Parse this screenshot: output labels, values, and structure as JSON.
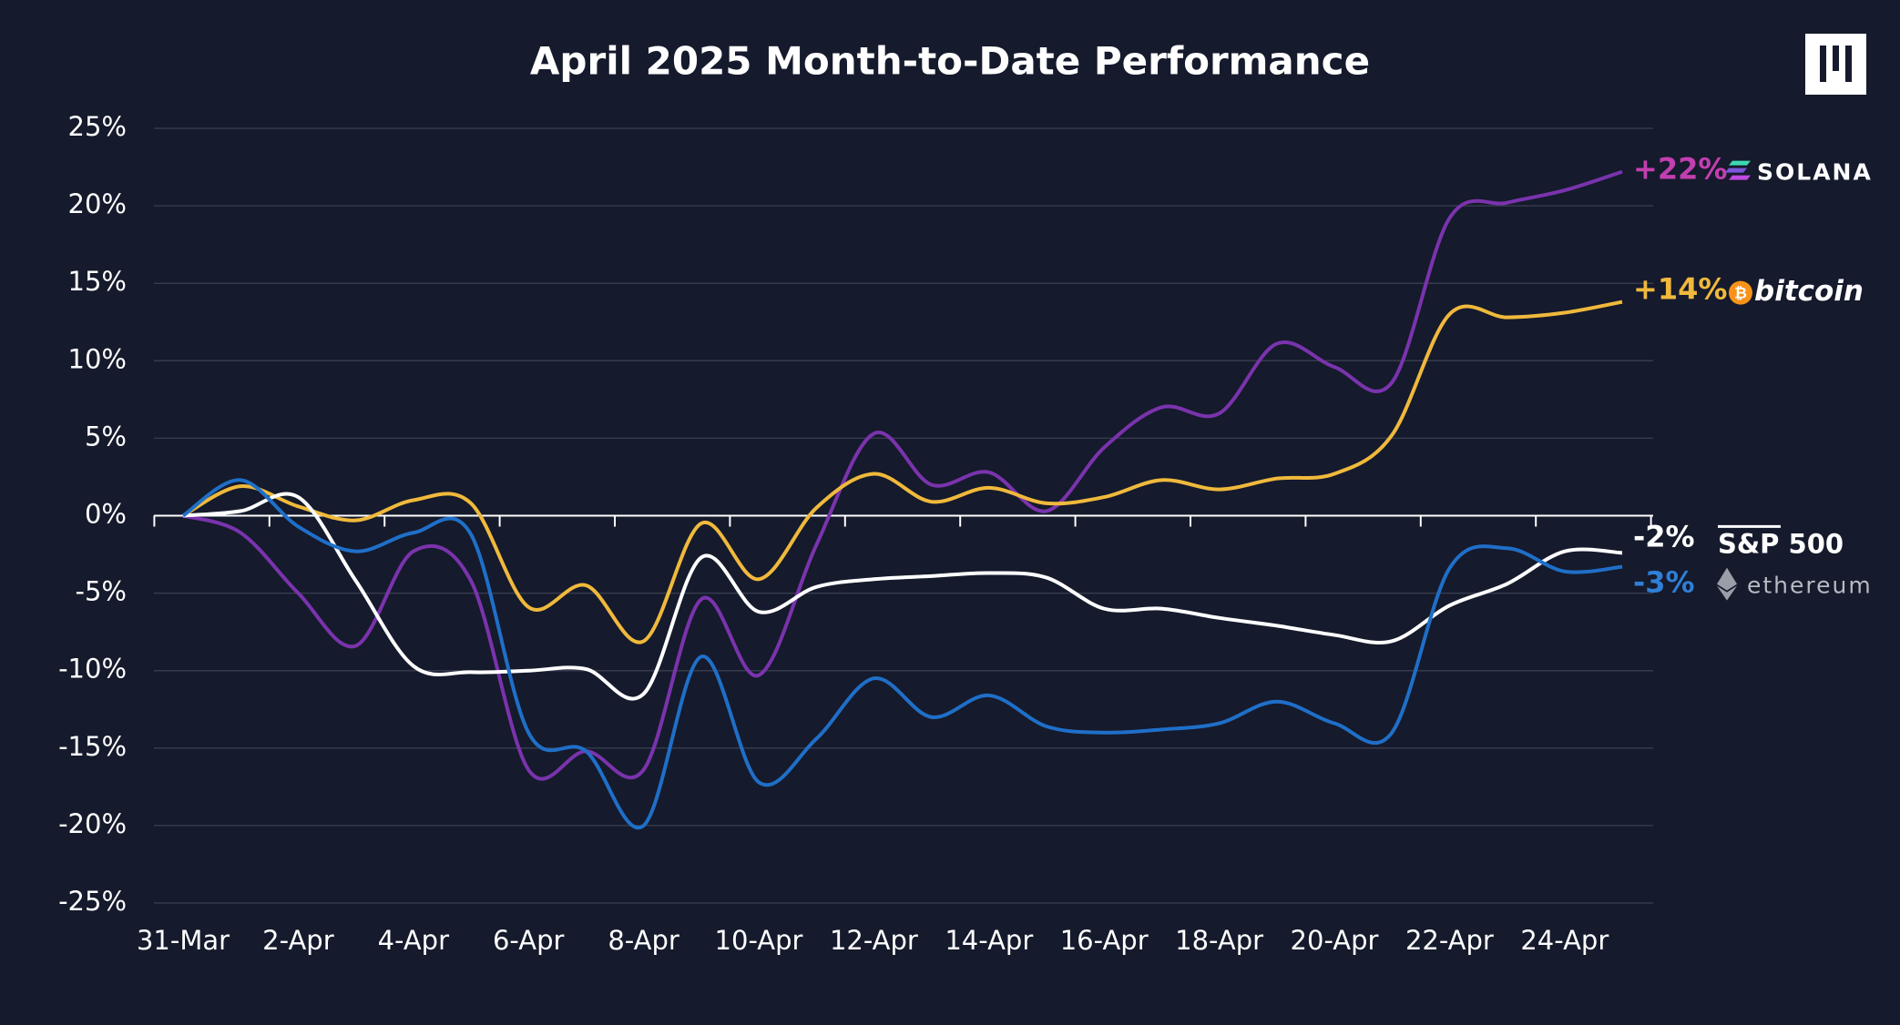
{
  "chart_data": {
    "type": "line",
    "title": "April 2025 Month-to-Date Performance",
    "categories": [
      "31-Mar",
      null,
      "2-Apr",
      null,
      "4-Apr",
      null,
      "6-Apr",
      null,
      "8-Apr",
      null,
      "10-Apr",
      null,
      "12-Apr",
      null,
      "14-Apr",
      null,
      "16-Apr",
      null,
      "18-Apr",
      null,
      "20-Apr",
      null,
      "22-Apr",
      null,
      "24-Apr",
      null
    ],
    "series": [
      {
        "name": "SOLANA",
        "color": "#7a33ad",
        "end_label": "+22%",
        "label_color": "#c23fb0",
        "values": [
          0,
          -1.1,
          -5.0,
          -8.4,
          -2.3,
          -4.2,
          -16.4,
          -15.2,
          -16.4,
          -5.4,
          -10.3,
          -1.9,
          5.3,
          2.0,
          2.8,
          0.3,
          4.4,
          7.0,
          6.6,
          11.1,
          9.6,
          8.6,
          19.2,
          20.2,
          21.0,
          22.2
        ]
      },
      {
        "name": "bitcoin",
        "color": "#f0b93c",
        "end_label": "+14%",
        "label_color": "#f0b93c",
        "values": [
          0,
          1.9,
          0.6,
          -0.3,
          1.0,
          0.8,
          -5.9,
          -4.5,
          -8.1,
          -0.5,
          -4.1,
          0.5,
          2.7,
          0.9,
          1.8,
          0.8,
          1.2,
          2.3,
          1.7,
          2.4,
          2.7,
          5.2,
          13.0,
          12.8,
          13.1,
          13.8
        ]
      },
      {
        "name": "S&P 500",
        "color": "#ffffff",
        "end_label": "-2%",
        "label_color": "#ffffff",
        "values": [
          0,
          0.3,
          1.2,
          -4.2,
          -9.7,
          -10.1,
          -10.0,
          -9.9,
          -11.5,
          -2.7,
          -6.2,
          -4.6,
          -4.1,
          -3.9,
          -3.7,
          -4.0,
          -6.0,
          -6.0,
          -6.6,
          -7.1,
          -7.7,
          -8.1,
          -5.8,
          -4.4,
          -2.3,
          -2.4
        ]
      },
      {
        "name": "ethereum",
        "color": "#1f6fc8",
        "end_label": "-3%",
        "label_color": "#2f7fd6",
        "values": [
          0,
          2.3,
          -0.7,
          -2.3,
          -1.1,
          -1.2,
          -14.0,
          -15.2,
          -20.0,
          -9.1,
          -17.2,
          -14.4,
          -10.5,
          -13.0,
          -11.6,
          -13.6,
          -14.0,
          -13.8,
          -13.4,
          -12.0,
          -13.4,
          -14.0,
          -3.4,
          -2.1,
          -3.6,
          -3.3
        ]
      }
    ],
    "ylim": [
      -25,
      25
    ],
    "yticks": [
      {
        "value": -25,
        "label": "-25%"
      },
      {
        "value": -20,
        "label": "-20%"
      },
      {
        "value": -15,
        "label": "-15%"
      },
      {
        "value": -10,
        "label": "-10%"
      },
      {
        "value": -5,
        "label": "-5%"
      },
      {
        "value": 0,
        "label": "0%"
      },
      {
        "value": 5,
        "label": "5%"
      },
      {
        "value": 10,
        "label": "10%"
      },
      {
        "value": 15,
        "label": "15%"
      },
      {
        "value": 20,
        "label": "20%"
      },
      {
        "value": 25,
        "label": "25%"
      }
    ],
    "grid": true
  }
}
